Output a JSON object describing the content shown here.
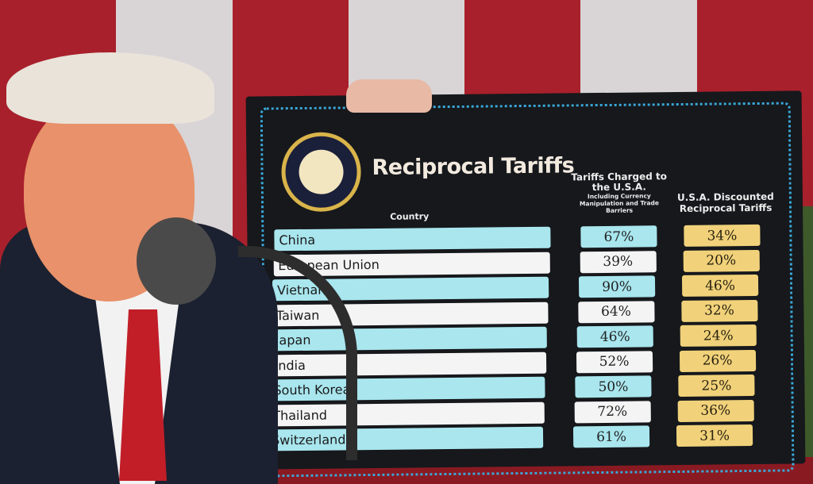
{
  "board": {
    "title": "Reciprocal Tariffs",
    "country_header": "Country",
    "charged_header": "Tariffs Charged to the U.S.A.",
    "charged_subheader": "Including Currency Manipulation and Trade Barriers",
    "discounted_header": "U.S.A. Discounted Reciprocal Tariffs",
    "seal": "Seal of the President of the United States",
    "rows": [
      {
        "country": "China",
        "charged": "67%",
        "discounted": "34%"
      },
      {
        "country": "European Union",
        "charged": "39%",
        "discounted": "20%"
      },
      {
        "country": "Vietnam",
        "charged": "90%",
        "discounted": "46%"
      },
      {
        "country": "Taiwan",
        "charged": "64%",
        "discounted": "32%"
      },
      {
        "country": "Japan",
        "charged": "46%",
        "discounted": "24%"
      },
      {
        "country": "India",
        "charged": "52%",
        "discounted": "26%"
      },
      {
        "country": "South Korea",
        "charged": "50%",
        "discounted": "25%"
      },
      {
        "country": "Thailand",
        "charged": "72%",
        "discounted": "36%"
      },
      {
        "country": "Switzerland",
        "charged": "61%",
        "discounted": "31%"
      }
    ]
  },
  "colors": {
    "row_blue": "#a9e6ee",
    "row_white": "#f4f4f4",
    "discount_yellow": "#f1d27a",
    "board": "#16181c",
    "flag_red": "#a8202b"
  }
}
